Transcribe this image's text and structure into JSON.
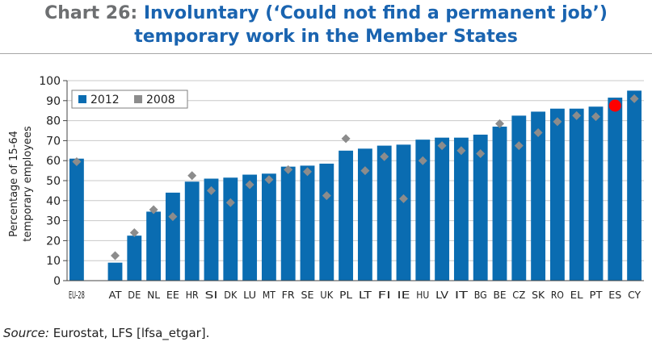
{
  "title": {
    "prefix": "Chart 26:",
    "line1": "Involuntary (‘Could not find a permanent job’)",
    "line2": "temporary work in the Member States"
  },
  "source": {
    "label": "Source:",
    "text": "Eurostat, LFS [lfsa_etgar]."
  },
  "colors": {
    "bar": "#0a6cb1",
    "marker": "#8c8c8c",
    "highlight": "#ff0000"
  },
  "chart_data": {
    "type": "bar",
    "ylabel_line1": "Percentage of 15-64",
    "ylabel_line2": "temporary employees",
    "ylim": [
      0,
      100
    ],
    "yticks": [
      0,
      10,
      20,
      30,
      40,
      50,
      60,
      70,
      80,
      90,
      100
    ],
    "grid": true,
    "legend_position": "top-left",
    "categories": [
      "EU-28",
      "AT",
      "DE",
      "NL",
      "EE",
      "HR",
      "SI",
      "DK",
      "LU",
      "MT",
      "FR",
      "SE",
      "UK",
      "PL",
      "LT",
      "FI",
      "IE",
      "HU",
      "LV",
      "IT",
      "BG",
      "BE",
      "CZ",
      "SK",
      "RO",
      "EL",
      "PT",
      "ES",
      "CY"
    ],
    "gap_after_index": 0,
    "highlight_category": "ES",
    "series": [
      {
        "name": "2012",
        "mark": "bar",
        "values": [
          61,
          9,
          22.5,
          34.5,
          44,
          49.5,
          51,
          51.5,
          53,
          53.5,
          57,
          57.5,
          58.5,
          65,
          66,
          67.5,
          68,
          70.5,
          71.5,
          71.5,
          73,
          77,
          82.5,
          84.5,
          86,
          86,
          87,
          91.5,
          95
        ]
      },
      {
        "name": "2008",
        "mark": "diamond",
        "values": [
          59.5,
          12.5,
          24,
          35.5,
          32,
          52.5,
          45,
          39,
          48,
          50.5,
          55.5,
          54.5,
          42.5,
          71,
          55,
          62,
          41,
          60,
          67.5,
          65,
          63.5,
          78.5,
          67.5,
          74,
          79.5,
          82.5,
          82,
          87.5,
          91
        ]
      }
    ]
  }
}
